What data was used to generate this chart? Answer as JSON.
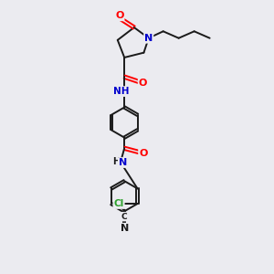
{
  "bg_color": "#ebebf0",
  "bond_color": "#1a1a1a",
  "bond_width": 1.4,
  "atom_colors": {
    "O": "#ff0000",
    "N": "#0000cc",
    "N_label": "#0000cc",
    "Cl": "#2ca02c",
    "N_nitrile": "#1a1a1a",
    "C": "#1a1a1a"
  }
}
